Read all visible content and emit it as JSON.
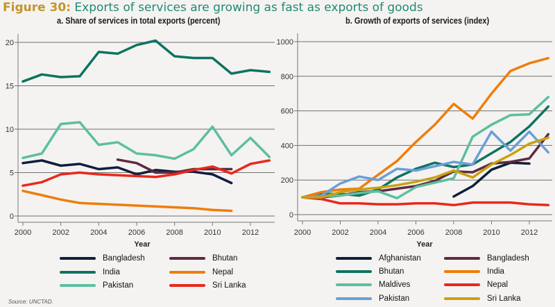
{
  "figure": {
    "number": "Figure 30:",
    "title": "Exports of services are growing as fast as exports of goods",
    "source": "Source: UNCTAD."
  },
  "colors": {
    "title_number": "#c4952a",
    "title_text": "#1f8a73",
    "background": "#f4f3f1",
    "gridline": "#777777"
  },
  "chart_data": [
    {
      "type": "line",
      "title": "a. Share of services in total exports (percent)",
      "xlabel": "Year",
      "ylabel": "",
      "xlim": [
        2000,
        2013
      ],
      "ylim": [
        0,
        20
      ],
      "xticks": [
        2000,
        2002,
        2004,
        2006,
        2008,
        2010,
        2012
      ],
      "yticks": [
        0,
        5,
        10,
        15,
        20
      ],
      "grid": "horizontal",
      "legend_position": "bottom",
      "series": [
        {
          "name": "Bangladesh",
          "color": "#0f1e3d",
          "x": [
            2000,
            2001,
            2002,
            2003,
            2004,
            2005,
            2006,
            2007,
            2008,
            2009,
            2010,
            2011
          ],
          "values": [
            6.1,
            6.4,
            5.8,
            6.0,
            5.4,
            5.6,
            4.8,
            5.3,
            5.1,
            5.1,
            4.8,
            3.8
          ]
        },
        {
          "name": "Bhutan",
          "color": "#5e2a3e",
          "x": [
            2005,
            2006,
            2007,
            2008,
            2009,
            2010,
            2011
          ],
          "values": [
            6.5,
            6.1,
            5.0,
            5.0,
            5.4,
            5.4,
            5.4
          ]
        },
        {
          "name": "India",
          "color": "#0e7361",
          "x": [
            2000,
            2001,
            2002,
            2003,
            2004,
            2005,
            2006,
            2007,
            2008,
            2009,
            2010,
            2011,
            2012,
            2013
          ],
          "values": [
            15.5,
            16.3,
            16.0,
            16.1,
            18.9,
            18.7,
            19.7,
            20.2,
            18.4,
            18.2,
            18.2,
            16.4,
            16.8,
            16.6
          ]
        },
        {
          "name": "Nepal",
          "color": "#ef7d0b",
          "x": [
            2000,
            2001,
            2002,
            2003,
            2004,
            2005,
            2006,
            2007,
            2008,
            2009,
            2010,
            2011
          ],
          "values": [
            2.9,
            2.4,
            1.9,
            1.5,
            1.4,
            1.3,
            1.2,
            1.1,
            1.0,
            0.9,
            0.7,
            0.6
          ]
        },
        {
          "name": "Pakistan",
          "color": "#5cbfa0",
          "x": [
            2000,
            2001,
            2002,
            2003,
            2004,
            2005,
            2006,
            2007,
            2008,
            2009,
            2010,
            2011,
            2012,
            2013
          ],
          "values": [
            6.7,
            7.2,
            10.6,
            10.8,
            8.2,
            8.5,
            7.2,
            7.0,
            6.6,
            7.7,
            10.3,
            7.0,
            9.0,
            6.8
          ]
        },
        {
          "name": "Sri Lanka",
          "color": "#e8281b",
          "x": [
            2000,
            2001,
            2002,
            2003,
            2004,
            2005,
            2006,
            2007,
            2008,
            2009,
            2010,
            2011,
            2012,
            2013
          ],
          "values": [
            3.5,
            3.9,
            4.8,
            5.0,
            4.8,
            4.7,
            4.6,
            4.5,
            4.8,
            5.3,
            5.7,
            4.9,
            6.0,
            6.4
          ]
        }
      ]
    },
    {
      "type": "line",
      "title": "b. Growth of exports of services (index)",
      "xlabel": "Year",
      "ylabel": "",
      "xlim": [
        2000,
        2013
      ],
      "ylim": [
        0,
        1000
      ],
      "xticks": [
        2000,
        2002,
        2004,
        2006,
        2008,
        2010,
        2012
      ],
      "yticks": [
        0,
        200,
        400,
        600,
        800,
        1000
      ],
      "grid": "horizontal",
      "legend_position": "bottom",
      "series": [
        {
          "name": "Afghanistan",
          "color": "#0f1e3d",
          "x": [
            2008,
            2009,
            2010,
            2011,
            2012
          ],
          "values": [
            105,
            165,
            260,
            300,
            295
          ]
        },
        {
          "name": "Bangladesh",
          "color": "#5e2a3e",
          "x": [
            2000,
            2001,
            2002,
            2003,
            2004,
            2005,
            2006,
            2007,
            2008,
            2009,
            2010,
            2011,
            2012,
            2013
          ],
          "values": [
            100,
            100,
            110,
            130,
            135,
            150,
            165,
            195,
            250,
            245,
            295,
            305,
            325,
            465
          ]
        },
        {
          "name": "Bhutan",
          "color": "#0e7361",
          "x": [
            2000,
            2001,
            2002,
            2003,
            2004,
            2005,
            2006,
            2007,
            2008,
            2009,
            2010,
            2011,
            2012,
            2013
          ],
          "values": [
            100,
            120,
            120,
            110,
            145,
            215,
            265,
            300,
            275,
            290,
            355,
            420,
            510,
            625
          ]
        },
        {
          "name": "India",
          "color": "#ef7d0b",
          "x": [
            2000,
            2001,
            2002,
            2003,
            2004,
            2005,
            2006,
            2007,
            2008,
            2009,
            2010,
            2011,
            2012,
            2013
          ],
          "values": [
            100,
            130,
            145,
            150,
            230,
            310,
            420,
            520,
            640,
            555,
            700,
            830,
            875,
            905
          ]
        },
        {
          "name": "Maldives",
          "color": "#5cbfa0",
          "x": [
            2000,
            2001,
            2002,
            2003,
            2004,
            2005,
            2006,
            2007,
            2008,
            2009,
            2010,
            2011,
            2012,
            2013
          ],
          "values": [
            100,
            105,
            110,
            125,
            135,
            95,
            160,
            185,
            210,
            450,
            520,
            575,
            580,
            680
          ]
        },
        {
          "name": "Nepal",
          "color": "#e8281b",
          "x": [
            2000,
            2001,
            2002,
            2003,
            2004,
            2005,
            2006,
            2007,
            2008,
            2009,
            2010,
            2011,
            2012,
            2013
          ],
          "values": [
            100,
            90,
            65,
            65,
            60,
            60,
            65,
            65,
            55,
            70,
            70,
            70,
            60,
            55
          ]
        },
        {
          "name": "Pakistan",
          "color": "#6a9fd8",
          "x": [
            2000,
            2001,
            2002,
            2003,
            2004,
            2005,
            2006,
            2007,
            2008,
            2009,
            2010,
            2011,
            2012,
            2013
          ],
          "values": [
            100,
            110,
            180,
            220,
            200,
            265,
            255,
            280,
            305,
            290,
            480,
            370,
            480,
            360
          ]
        },
        {
          "name": "Sri Lanka",
          "color": "#c9a10f",
          "x": [
            2000,
            2001,
            2002,
            2003,
            2004,
            2005,
            2006,
            2007,
            2008,
            2009,
            2010,
            2011,
            2012,
            2013
          ],
          "values": [
            100,
            100,
            130,
            145,
            155,
            170,
            190,
            215,
            255,
            215,
            290,
            345,
            410,
            445
          ]
        }
      ]
    }
  ]
}
